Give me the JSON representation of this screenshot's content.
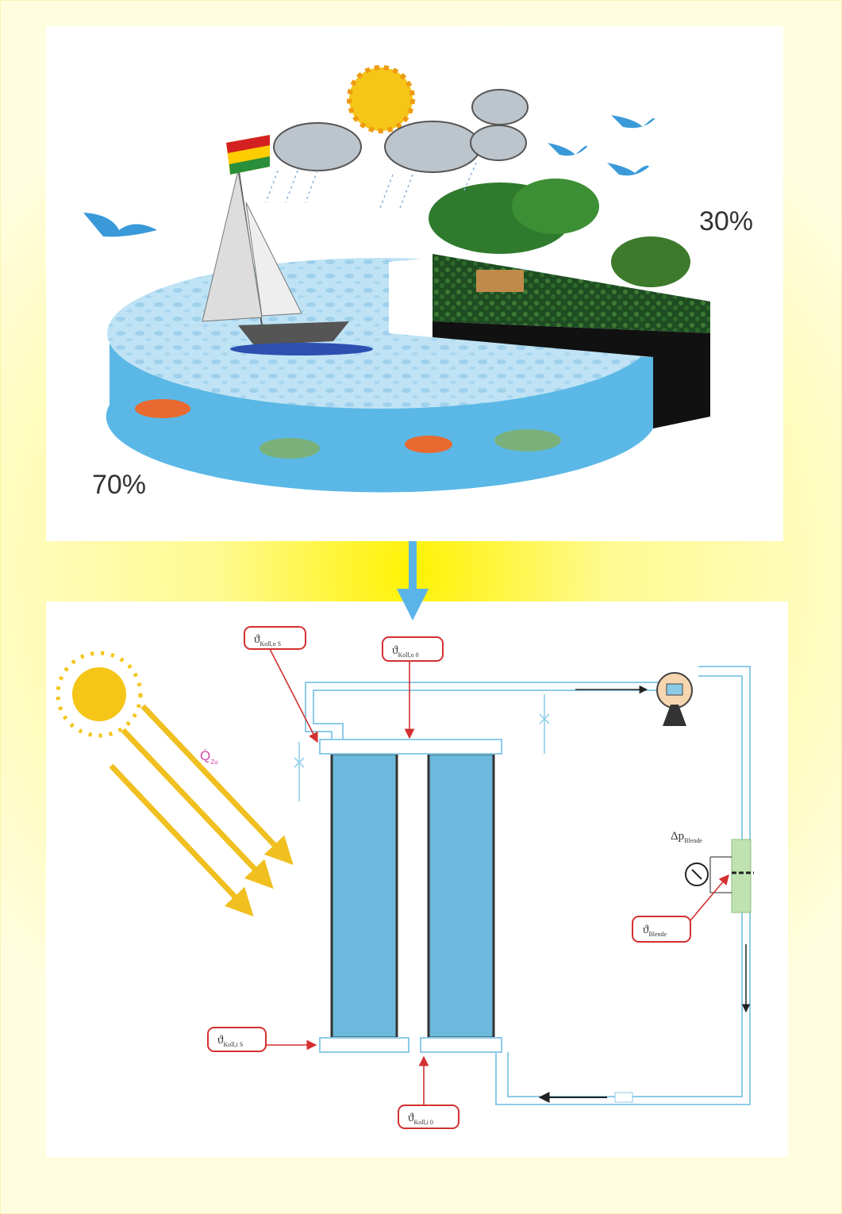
{
  "pie": {
    "water": "70%",
    "land": "30%"
  },
  "diagram": {
    "labels": [
      {
        "symbol": "ϑ",
        "subscript": "Koll,o S"
      },
      {
        "symbol": "ϑ",
        "subscript": "Koll,o 0"
      },
      {
        "symbol": "Q̇",
        "subscript": "Zu"
      },
      {
        "symbol": "Δp",
        "subscript": "Blende"
      },
      {
        "symbol": "ϑ",
        "subscript": "Blende"
      },
      {
        "symbol": "ϑ",
        "subscript": "Koll,i S"
      },
      {
        "symbol": "ϑ",
        "subscript": "Koll,i 0"
      }
    ]
  }
}
